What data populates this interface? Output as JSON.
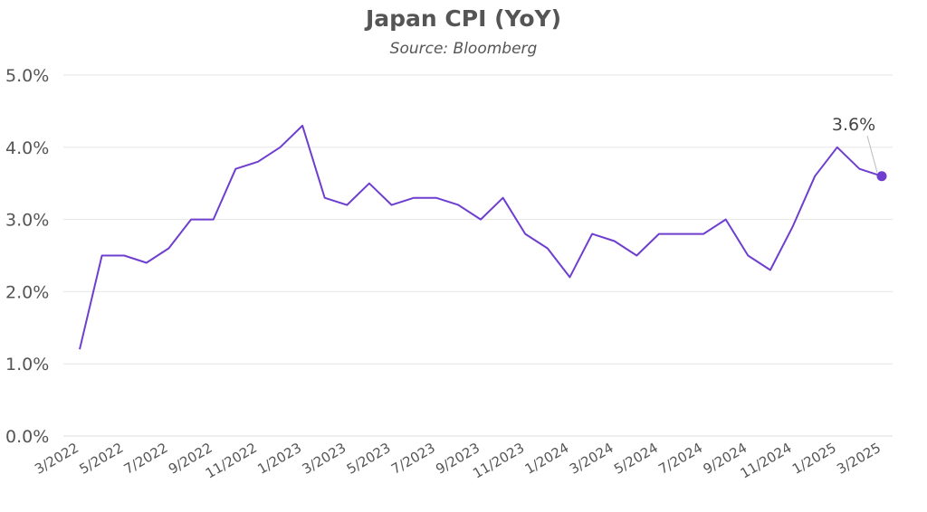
{
  "chart_data": {
    "type": "line",
    "title": "Japan CPI (YoY)",
    "subtitle": "Source: Bloomberg",
    "xlabel": "",
    "ylabel": "",
    "ylim": [
      0,
      5
    ],
    "y_ticks": [
      "0.0%",
      "1.0%",
      "2.0%",
      "3.0%",
      "4.0%",
      "5.0%"
    ],
    "x": [
      "3/2022",
      "4/2022",
      "5/2022",
      "6/2022",
      "7/2022",
      "8/2022",
      "9/2022",
      "10/2022",
      "11/2022",
      "12/2022",
      "1/2023",
      "2/2023",
      "3/2023",
      "4/2023",
      "5/2023",
      "6/2023",
      "7/2023",
      "8/2023",
      "9/2023",
      "10/2023",
      "11/2023",
      "12/2023",
      "1/2024",
      "2/2024",
      "3/2024",
      "4/2024",
      "5/2024",
      "6/2024",
      "7/2024",
      "8/2024",
      "9/2024",
      "10/2024",
      "11/2024",
      "12/2024",
      "1/2025",
      "2/2025",
      "3/2025"
    ],
    "x_tick_labels": [
      "3/2022",
      "5/2022",
      "7/2022",
      "9/2022",
      "11/2022",
      "1/2023",
      "3/2023",
      "5/2023",
      "7/2023",
      "9/2023",
      "11/2023",
      "1/2024",
      "3/2024",
      "5/2024",
      "7/2024",
      "9/2024",
      "11/2024",
      "1/2025",
      "3/2025"
    ],
    "values": [
      1.2,
      2.5,
      2.5,
      2.4,
      2.6,
      3.0,
      3.0,
      3.7,
      3.8,
      4.0,
      4.3,
      3.3,
      3.2,
      3.5,
      3.2,
      3.3,
      3.3,
      3.2,
      3.0,
      3.3,
      2.8,
      2.6,
      2.2,
      2.8,
      2.7,
      2.5,
      2.8,
      2.8,
      2.8,
      3.0,
      2.5,
      2.3,
      2.9,
      3.6,
      4.0,
      3.7,
      3.6
    ],
    "line_color": "#6e3fce",
    "grid": true,
    "annotation": {
      "text": "3.6%"
    }
  }
}
